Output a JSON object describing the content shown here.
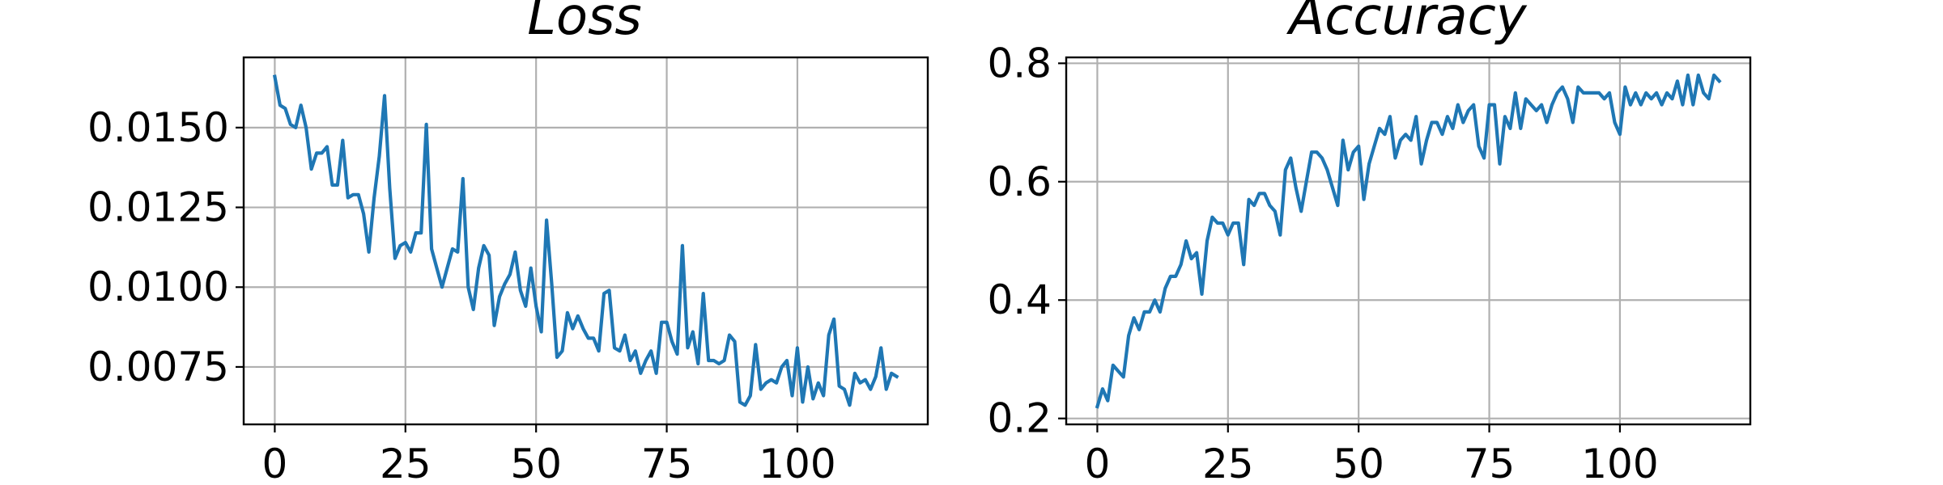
{
  "colors": {
    "line": "#1f77b4",
    "grid": "#b0b0b0",
    "axes": "#000000",
    "background": "#ffffff"
  },
  "chart_data": [
    {
      "type": "line",
      "title": "Loss",
      "xlabel": "",
      "ylabel": "",
      "grid": true,
      "xlim": [
        -5.95,
        124.95
      ],
      "ylim": [
        0.0057,
        0.0172
      ],
      "xticks": [
        0,
        25,
        50,
        75,
        100
      ],
      "xtick_labels": [
        "0",
        "25",
        "50",
        "75",
        "100"
      ],
      "yticks": [
        0.0075,
        0.01,
        0.0125,
        0.015
      ],
      "ytick_labels": [
        "0.0075",
        "0.0100",
        "0.0125",
        "0.0150"
      ],
      "series": [
        {
          "x": [
            0,
            1,
            2,
            3,
            4,
            5,
            6,
            7,
            8,
            9,
            10,
            11,
            12,
            13,
            14,
            15,
            16,
            17,
            18,
            19,
            20,
            21,
            22,
            23,
            24,
            25,
            26,
            27,
            28,
            29,
            30,
            31,
            32,
            33,
            34,
            35,
            36,
            37,
            38,
            39,
            40,
            41,
            42,
            43,
            44,
            45,
            46,
            47,
            48,
            49,
            50,
            51,
            52,
            53,
            54,
            55,
            56,
            57,
            58,
            59,
            60,
            61,
            62,
            63,
            64,
            65,
            66,
            67,
            68,
            69,
            70,
            71,
            72,
            73,
            74,
            75,
            76,
            77,
            78,
            79,
            80,
            81,
            82,
            83,
            84,
            85,
            86,
            87,
            88,
            89,
            90,
            91,
            92,
            93,
            94,
            95,
            96,
            97,
            98,
            99,
            100,
            101,
            102,
            103,
            104,
            105,
            106,
            107,
            108,
            109,
            110,
            111,
            112,
            113,
            114,
            115,
            116,
            117,
            118,
            119
          ],
          "values": [
            0.0166,
            0.0157,
            0.0156,
            0.0151,
            0.015,
            0.0157,
            0.015,
            0.0137,
            0.0142,
            0.0142,
            0.0144,
            0.0132,
            0.0132,
            0.0146,
            0.0128,
            0.0129,
            0.0129,
            0.0123,
            0.0111,
            0.0128,
            0.0141,
            0.016,
            0.0131,
            0.0109,
            0.0113,
            0.0114,
            0.0111,
            0.0117,
            0.0117,
            0.0151,
            0.0112,
            0.0106,
            0.01,
            0.0106,
            0.0112,
            0.0111,
            0.0134,
            0.01,
            0.0093,
            0.0106,
            0.0113,
            0.011,
            0.0088,
            0.0097,
            0.0101,
            0.0104,
            0.0111,
            0.0099,
            0.0094,
            0.0106,
            0.0094,
            0.0086,
            0.0121,
            0.0101,
            0.0078,
            0.008,
            0.0092,
            0.0087,
            0.0091,
            0.0087,
            0.0084,
            0.0084,
            0.008,
            0.0098,
            0.0099,
            0.0081,
            0.008,
            0.0085,
            0.0077,
            0.008,
            0.0073,
            0.0077,
            0.008,
            0.0073,
            0.0089,
            0.0089,
            0.0083,
            0.0079,
            0.0113,
            0.0081,
            0.0086,
            0.0076,
            0.0098,
            0.0077,
            0.0077,
            0.0076,
            0.0077,
            0.0085,
            0.0083,
            0.0064,
            0.0063,
            0.0066,
            0.0082,
            0.0068,
            0.007,
            0.0071,
            0.007,
            0.0075,
            0.0077,
            0.0066,
            0.0081,
            0.0064,
            0.0075,
            0.0065,
            0.007,
            0.0066,
            0.0085,
            0.009,
            0.0069,
            0.0068,
            0.0063,
            0.0073,
            0.007,
            0.0071,
            0.0068,
            0.0072,
            0.0081,
            0.0068,
            0.0073,
            0.0072
          ]
        }
      ]
    },
    {
      "type": "line",
      "title": "Accuracy",
      "xlabel": "",
      "ylabel": "",
      "grid": true,
      "xlim": [
        -5.95,
        124.95
      ],
      "ylim": [
        0.19,
        0.81
      ],
      "xticks": [
        0,
        25,
        50,
        75,
        100
      ],
      "xtick_labels": [
        "0",
        "25",
        "50",
        "75",
        "100"
      ],
      "yticks": [
        0.2,
        0.4,
        0.6,
        0.8
      ],
      "ytick_labels": [
        "0.2",
        "0.4",
        "0.6",
        "0.8"
      ],
      "series": [
        {
          "x": [
            0,
            1,
            2,
            3,
            4,
            5,
            6,
            7,
            8,
            9,
            10,
            11,
            12,
            13,
            14,
            15,
            16,
            17,
            18,
            19,
            20,
            21,
            22,
            23,
            24,
            25,
            26,
            27,
            28,
            29,
            30,
            31,
            32,
            33,
            34,
            35,
            36,
            37,
            38,
            39,
            40,
            41,
            42,
            43,
            44,
            45,
            46,
            47,
            48,
            49,
            50,
            51,
            52,
            53,
            54,
            55,
            56,
            57,
            58,
            59,
            60,
            61,
            62,
            63,
            64,
            65,
            66,
            67,
            68,
            69,
            70,
            71,
            72,
            73,
            74,
            75,
            76,
            77,
            78,
            79,
            80,
            81,
            82,
            83,
            84,
            85,
            86,
            87,
            88,
            89,
            90,
            91,
            92,
            93,
            94,
            95,
            96,
            97,
            98,
            99,
            100,
            101,
            102,
            103,
            104,
            105,
            106,
            107,
            108,
            109,
            110,
            111,
            112,
            113,
            114,
            115,
            116,
            117,
            118,
            119
          ],
          "values": [
            0.22,
            0.25,
            0.23,
            0.29,
            0.28,
            0.27,
            0.34,
            0.37,
            0.35,
            0.38,
            0.38,
            0.4,
            0.38,
            0.42,
            0.44,
            0.44,
            0.46,
            0.5,
            0.47,
            0.48,
            0.41,
            0.5,
            0.54,
            0.53,
            0.53,
            0.51,
            0.53,
            0.53,
            0.46,
            0.57,
            0.56,
            0.58,
            0.58,
            0.56,
            0.55,
            0.51,
            0.62,
            0.64,
            0.59,
            0.55,
            0.6,
            0.65,
            0.65,
            0.64,
            0.62,
            0.59,
            0.56,
            0.67,
            0.62,
            0.65,
            0.66,
            0.57,
            0.63,
            0.66,
            0.69,
            0.68,
            0.71,
            0.64,
            0.67,
            0.68,
            0.67,
            0.71,
            0.63,
            0.67,
            0.7,
            0.7,
            0.68,
            0.71,
            0.69,
            0.73,
            0.7,
            0.72,
            0.73,
            0.66,
            0.64,
            0.73,
            0.73,
            0.63,
            0.71,
            0.69,
            0.75,
            0.69,
            0.74,
            0.73,
            0.72,
            0.73,
            0.7,
            0.73,
            0.75,
            0.76,
            0.74,
            0.7,
            0.76,
            0.75,
            0.75,
            0.75,
            0.75,
            0.74,
            0.75,
            0.7,
            0.68,
            0.76,
            0.73,
            0.75,
            0.73,
            0.75,
            0.74,
            0.75,
            0.73,
            0.75,
            0.74,
            0.77,
            0.73,
            0.78,
            0.73,
            0.78,
            0.75,
            0.74,
            0.78,
            0.77
          ]
        }
      ]
    }
  ]
}
